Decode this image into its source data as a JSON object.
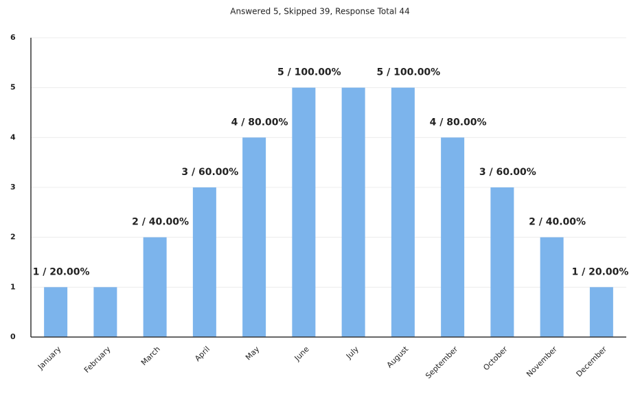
{
  "chart_data": {
    "type": "bar",
    "title": "Answered 5, Skipped 39, Response Total 44",
    "categories": [
      "January",
      "February",
      "March",
      "April",
      "May",
      "June",
      "July",
      "August",
      "September",
      "October",
      "November",
      "December"
    ],
    "values": [
      1,
      1,
      2,
      3,
      4,
      5,
      5,
      5,
      4,
      3,
      2,
      1
    ],
    "value_labels": [
      "1 / 20.00%",
      null,
      "2 / 40.00%",
      "3 / 60.00%",
      "4 / 80.00%",
      "5 / 100.00%",
      null,
      "5 / 100.00%",
      "4 / 80.00%",
      "3 / 60.00%",
      "2 / 40.00%",
      "1 / 20.00%"
    ],
    "color": "#7cb4ec",
    "ylim": [
      0,
      6
    ],
    "yticks": [
      0,
      1,
      2,
      3,
      4,
      5,
      6
    ],
    "grid": true
  }
}
